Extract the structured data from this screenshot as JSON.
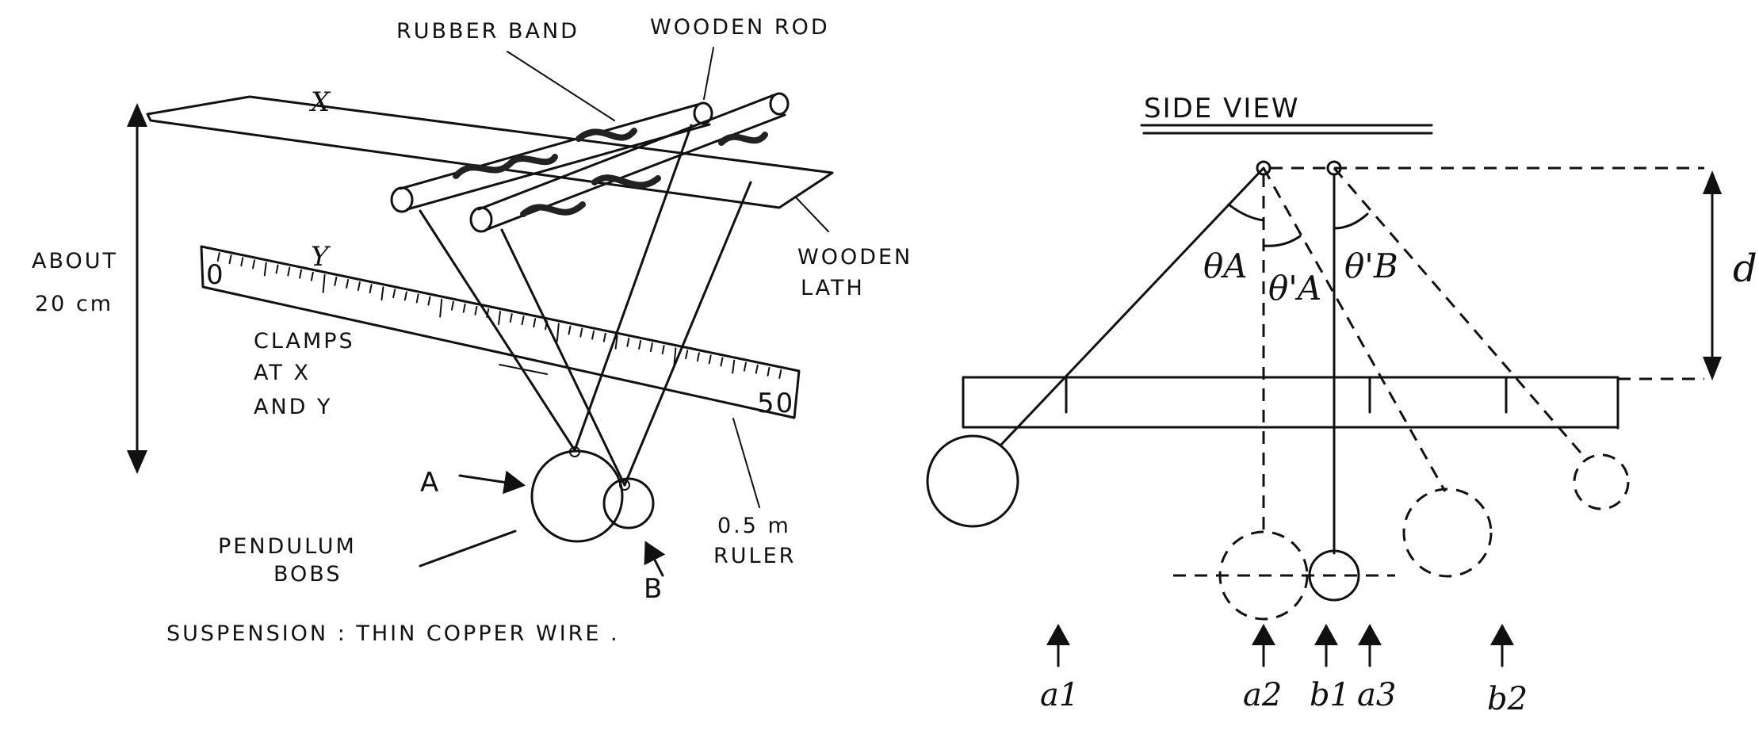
{
  "left": {
    "rubber_band": "RUBBER BAND",
    "wooden_rod": "WOODEN ROD",
    "x_mark": "X",
    "y_mark": "Y",
    "about": "ABOUT",
    "about_value": "20 cm",
    "wooden": "WOODEN",
    "lath": "LATH",
    "ruler_zero": "0",
    "ruler_fifty": "50",
    "clamps_1": "CLAMPS",
    "clamps_2": "AT X",
    "clamps_3": "AND Y",
    "bob_a": "A",
    "bob_b": "B",
    "pendulum": "PENDULUM",
    "bobs": "BOBS",
    "ruler_size": "0.5 m",
    "ruler_word": "RULER",
    "suspension": "SUSPENSION : THIN COPPER WIRE ."
  },
  "right": {
    "title": "SIDE VIEW",
    "theta_a": "θA",
    "theta_a_prime": "θ'A",
    "theta_b_prime": "θ'B",
    "d": "d",
    "a1": "a1",
    "a2": "a2",
    "b1": "b1",
    "a3": "a3",
    "b2": "b2"
  }
}
